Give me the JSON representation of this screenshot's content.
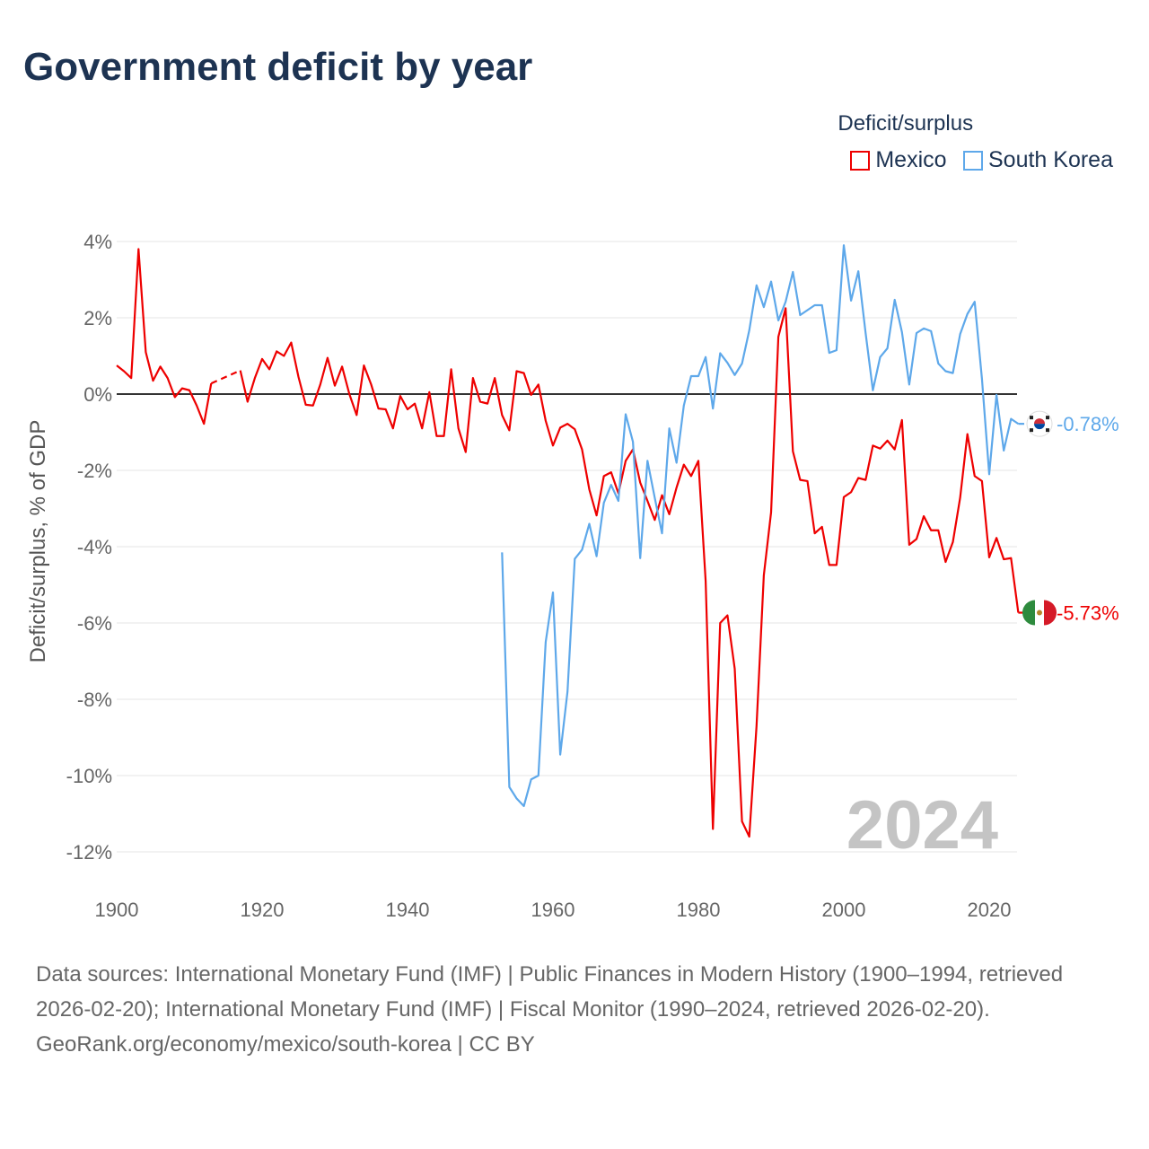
{
  "colors": {
    "mexico": "#ee0000",
    "south_korea": "#5ea8ea",
    "title": "#1d3352",
    "zero": "#333333"
  },
  "chart_data": {
    "type": "line",
    "title": "Government deficit by year",
    "ylabel": "Deficit/surplus, % of GDP",
    "xlabel": "",
    "legend_title": "Deficit/surplus",
    "legend_position": "top-right",
    "xlim": [
      1900,
      2024
    ],
    "ylim": [
      -12.8,
      4.4
    ],
    "x_ticks": [
      1900,
      1920,
      1940,
      1960,
      1980,
      2000,
      2020
    ],
    "x_tick_labels": [
      "1900",
      "1920",
      "1940",
      "1960",
      "1980",
      "2000",
      "2020"
    ],
    "y_ticks": [
      4,
      2,
      0,
      -2,
      -4,
      -6,
      -8,
      -10,
      -12
    ],
    "y_tick_labels": [
      "4%",
      "2%",
      "0%",
      "-2%",
      "-4%",
      "-6%",
      "-8%",
      "-10%",
      "-12%"
    ],
    "grid": true,
    "year_watermark": "2024",
    "series": [
      {
        "name": "Mexico",
        "start_year": 1900,
        "end_label": "-5.73%",
        "flag": "mexico-flag-icon",
        "values": [
          0.75,
          0.6,
          0.42,
          3.8,
          1.1,
          0.35,
          0.72,
          0.42,
          -0.08,
          0.15,
          0.1,
          -0.3,
          -0.78,
          0.28,
          null,
          null,
          null,
          0.62,
          -0.2,
          0.42,
          0.92,
          0.65,
          1.12,
          1.0,
          1.35,
          0.45,
          -0.28,
          -0.3,
          0.25,
          0.95,
          0.22,
          0.72,
          0.0,
          -0.55,
          0.75,
          0.25,
          -0.38,
          -0.4,
          -0.9,
          -0.05,
          -0.4,
          -0.25,
          -0.9,
          0.05,
          -1.1,
          -1.1,
          0.65,
          -0.9,
          -1.52,
          0.42,
          -0.2,
          -0.25,
          0.42,
          -0.55,
          -0.95,
          0.6,
          0.55,
          -0.02,
          0.25,
          -0.7,
          -1.35,
          -0.88,
          -0.78,
          -0.92,
          -1.45,
          -2.5,
          -3.18,
          -2.15,
          -2.05,
          -2.6,
          -1.75,
          -1.45,
          -2.32,
          -2.8,
          -3.3,
          -2.65,
          -3.15,
          -2.45,
          -1.85,
          -2.15,
          -1.75,
          -4.9,
          -11.4,
          -6.0,
          -5.8,
          -7.2,
          -11.2,
          -11.6,
          -8.7,
          -4.75,
          -3.1,
          1.5,
          2.25,
          -1.5,
          -2.25,
          -2.28,
          -3.65,
          -3.48,
          -4.48,
          -4.48,
          -2.7,
          -2.57,
          -2.2,
          -2.25,
          -1.35,
          -1.43,
          -1.22,
          -1.45,
          -0.68,
          -3.95,
          -3.8,
          -3.2,
          -3.57,
          -3.57,
          -4.4,
          -3.88,
          -2.72,
          -1.05,
          -2.15,
          -2.28,
          -4.28,
          -3.77,
          -4.33,
          -4.3,
          -5.73
        ]
      },
      {
        "name": "South Korea",
        "start_year": 1953,
        "end_label": "-0.78%",
        "flag": "south-korea-flag-icon",
        "values": [
          -4.15,
          -10.3,
          -10.6,
          -10.8,
          -10.1,
          -10.0,
          -6.5,
          -5.2,
          -9.45,
          -7.8,
          -4.32,
          -4.08,
          -3.4,
          -4.25,
          -2.85,
          -2.38,
          -2.8,
          -0.53,
          -1.25,
          -4.3,
          -1.75,
          -2.72,
          -3.65,
          -0.9,
          -1.8,
          -0.3,
          0.47,
          0.47,
          0.97,
          -0.38,
          1.07,
          0.82,
          0.5,
          0.8,
          1.67,
          2.85,
          2.28,
          2.95,
          1.93,
          2.42,
          3.2,
          2.07,
          2.2,
          2.33,
          2.33,
          1.08,
          1.15,
          3.9,
          2.45,
          3.22,
          1.6,
          0.1,
          0.97,
          1.2,
          2.47,
          1.62,
          0.25,
          1.6,
          1.72,
          1.65,
          0.8,
          0.6,
          0.55,
          1.57,
          2.1,
          2.42,
          0.4,
          -2.1,
          -0.02,
          -1.48,
          -0.65,
          -0.78
        ]
      }
    ]
  },
  "footer": {
    "sources": "Data sources: International Monetary Fund (IMF) | Public Finances in Modern History (1900–1994, retrieved 2026-02-20); International Monetary Fund (IMF) | Fiscal Monitor (1990–2024, retrieved 2026-02-20).",
    "credit": "GeoRank.org/economy/mexico/south-korea | CC BY"
  }
}
